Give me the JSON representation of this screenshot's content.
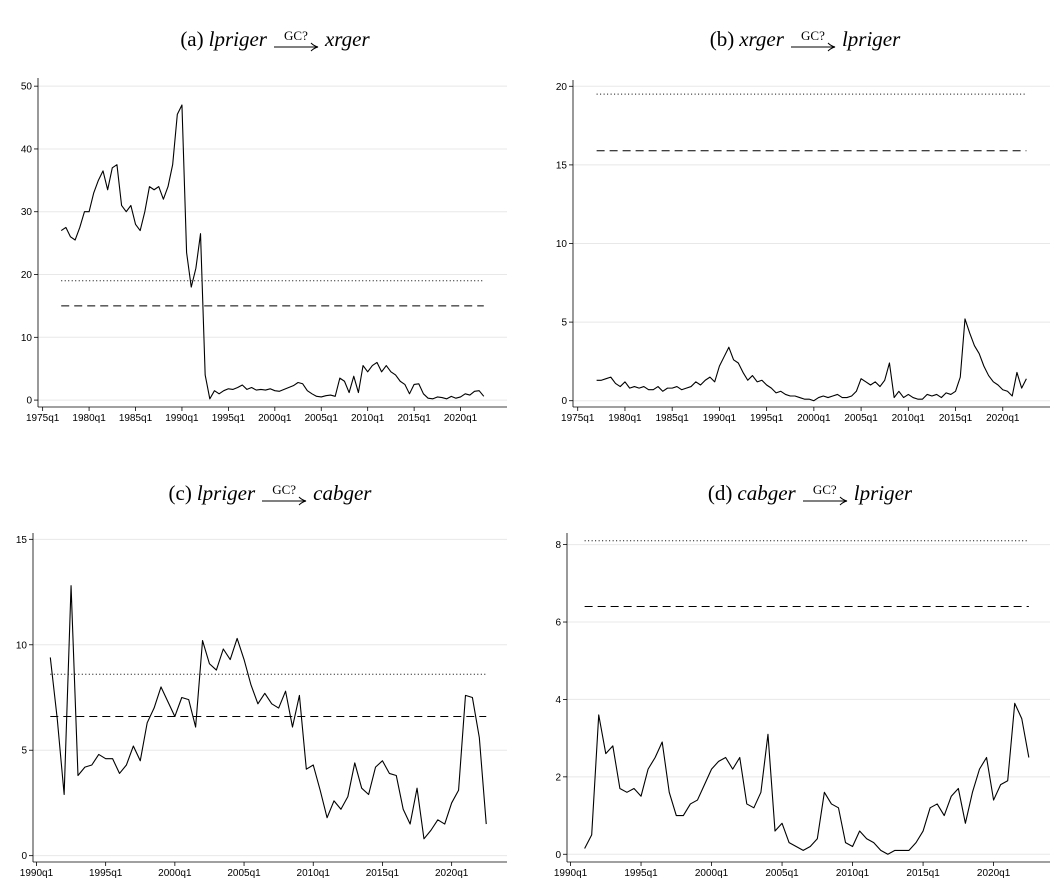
{
  "chart_data": [
    {
      "type": "line",
      "title": {
        "prefix": "(a)",
        "from": "lpriger",
        "arrow_label": "GC?",
        "to": "xrger"
      },
      "x": [
        "1977q1",
        "1977q3",
        "1978q1",
        "1978q3",
        "1979q1",
        "1979q3",
        "1980q1",
        "1980q3",
        "1981q1",
        "1981q3",
        "1982q1",
        "1982q3",
        "1983q1",
        "1983q3",
        "1984q1",
        "1984q3",
        "1985q1",
        "1985q3",
        "1986q1",
        "1986q3",
        "1987q1",
        "1987q3",
        "1988q1",
        "1988q3",
        "1989q1",
        "1989q3",
        "1990q1",
        "1990q3",
        "1991q1",
        "1991q3",
        "1992q1",
        "1992q3",
        "1993q1",
        "1993q3",
        "1994q1",
        "1994q3",
        "1995q1",
        "1995q3",
        "1996q1",
        "1996q3",
        "1997q1",
        "1997q3",
        "1998q1",
        "1998q3",
        "1999q1",
        "1999q3",
        "2000q1",
        "2000q3",
        "2001q1",
        "2001q3",
        "2002q1",
        "2002q3",
        "2003q1",
        "2003q3",
        "2004q1",
        "2004q3",
        "2005q1",
        "2005q3",
        "2006q1",
        "2006q3",
        "2007q1",
        "2007q3",
        "2008q1",
        "2008q3",
        "2009q1",
        "2009q3",
        "2010q1",
        "2010q3",
        "2011q1",
        "2011q3",
        "2012q1",
        "2012q3",
        "2013q1",
        "2013q3",
        "2014q1",
        "2014q3",
        "2015q1",
        "2015q3",
        "2016q1",
        "2016q3",
        "2017q1",
        "2017q3",
        "2018q1",
        "2018q3",
        "2019q1",
        "2019q3",
        "2020q1",
        "2020q3",
        "2021q1",
        "2021q3",
        "2022q1",
        "2022q3"
      ],
      "series": [
        {
          "color": "#000000",
          "values": [
            27,
            27.5,
            26,
            25.5,
            27.5,
            30,
            30,
            33,
            35,
            36.5,
            33.5,
            37,
            37.5,
            31,
            30,
            31,
            28,
            27,
            30,
            34,
            33.5,
            34,
            32,
            34,
            37.5,
            45.5,
            47,
            23.5,
            18,
            21,
            26.5,
            4,
            0.2,
            1.5,
            1,
            1.5,
            1.8,
            1.7,
            2,
            2.4,
            1.7,
            2,
            1.6,
            1.7,
            1.6,
            1.8,
            1.5,
            1.4,
            1.7,
            2,
            2.3,
            2.8,
            2.6,
            1.5,
            1,
            0.6,
            0.5,
            0.7,
            0.8,
            0.6,
            3.5,
            3,
            1.2,
            3.8,
            1.2,
            5.5,
            4.5,
            5.5,
            6,
            4.5,
            5.5,
            4.5,
            4,
            3,
            2.5,
            1,
            2.5,
            2.6,
            1,
            0.3,
            0.2,
            0.5,
            0.4,
            0.2,
            0.6,
            0.3,
            0.5,
            1,
            0.8,
            1.4,
            1.5,
            0.6
          ]
        }
      ],
      "hlines": [
        {
          "value": 19,
          "style": "dotted"
        },
        {
          "value": 15,
          "style": "dashed"
        }
      ],
      "xlim": [
        "1974q3",
        "2025q1"
      ],
      "xticks": [
        "1975q1",
        "1980q1",
        "1985q1",
        "1990q1",
        "1995q1",
        "2000q1",
        "2005q1",
        "2010q1",
        "2015q1",
        "2020q1"
      ],
      "ylim": [
        -1.1,
        51.3
      ],
      "yticks": [
        0,
        10,
        20,
        30,
        40,
        50
      ],
      "grid": true
    },
    {
      "type": "line",
      "title": {
        "prefix": "(b)",
        "from": "xrger",
        "arrow_label": "GC?",
        "to": "lpriger"
      },
      "x": [
        "1977q1",
        "1977q3",
        "1978q1",
        "1978q3",
        "1979q1",
        "1979q3",
        "1980q1",
        "1980q3",
        "1981q1",
        "1981q3",
        "1982q1",
        "1982q3",
        "1983q1",
        "1983q3",
        "1984q1",
        "1984q3",
        "1985q1",
        "1985q3",
        "1986q1",
        "1986q3",
        "1987q1",
        "1987q3",
        "1988q1",
        "1988q3",
        "1989q1",
        "1989q3",
        "1990q1",
        "1990q3",
        "1991q1",
        "1991q3",
        "1992q1",
        "1992q3",
        "1993q1",
        "1993q3",
        "1994q1",
        "1994q3",
        "1995q1",
        "1995q3",
        "1996q1",
        "1996q3",
        "1997q1",
        "1997q3",
        "1998q1",
        "1998q3",
        "1999q1",
        "1999q3",
        "2000q1",
        "2000q3",
        "2001q1",
        "2001q3",
        "2002q1",
        "2002q3",
        "2003q1",
        "2003q3",
        "2004q1",
        "2004q3",
        "2005q1",
        "2005q3",
        "2006q1",
        "2006q3",
        "2007q1",
        "2007q3",
        "2008q1",
        "2008q3",
        "2009q1",
        "2009q3",
        "2010q1",
        "2010q3",
        "2011q1",
        "2011q3",
        "2012q1",
        "2012q3",
        "2013q1",
        "2013q3",
        "2014q1",
        "2014q3",
        "2015q1",
        "2015q3",
        "2016q1",
        "2016q3",
        "2017q1",
        "2017q3",
        "2018q1",
        "2018q3",
        "2019q1",
        "2019q3",
        "2020q1",
        "2020q3",
        "2021q1",
        "2021q3",
        "2022q1",
        "2022q3"
      ],
      "series": [
        {
          "color": "#000000",
          "values": [
            1.3,
            1.3,
            1.4,
            1.5,
            1.1,
            0.9,
            1.2,
            0.8,
            0.9,
            0.8,
            0.9,
            0.7,
            0.7,
            0.9,
            0.6,
            0.8,
            0.8,
            0.9,
            0.7,
            0.8,
            0.9,
            1.2,
            1,
            1.3,
            1.5,
            1.2,
            2.2,
            2.8,
            3.4,
            2.6,
            2.4,
            1.8,
            1.3,
            1.6,
            1.2,
            1.3,
            1,
            0.8,
            0.5,
            0.6,
            0.4,
            0.3,
            0.3,
            0.2,
            0.1,
            0.1,
            0,
            0.2,
            0.3,
            0.2,
            0.3,
            0.4,
            0.2,
            0.2,
            0.3,
            0.6,
            1.4,
            1.2,
            1,
            1.2,
            0.9,
            1.3,
            2.4,
            0.2,
            0.6,
            0.2,
            0.4,
            0.2,
            0.1,
            0.1,
            0.4,
            0.3,
            0.4,
            0.2,
            0.5,
            0.4,
            0.6,
            1.5,
            5.2,
            4.3,
            3.5,
            3,
            2.2,
            1.6,
            1.2,
            1,
            0.7,
            0.6,
            0.3,
            1.8,
            0.8,
            1.4
          ]
        }
      ],
      "hlines": [
        {
          "value": 19.5,
          "style": "dotted"
        },
        {
          "value": 15.9,
          "style": "dashed"
        }
      ],
      "xlim": [
        "1974q3",
        "2025q1"
      ],
      "xticks": [
        "1975q1",
        "1980q1",
        "1985q1",
        "1990q1",
        "1995q1",
        "2000q1",
        "2005q1",
        "2010q1",
        "2015q1",
        "2020q1"
      ],
      "ylim": [
        -0.4,
        20.4
      ],
      "yticks": [
        0,
        5,
        10,
        15,
        20
      ],
      "grid": true
    },
    {
      "type": "line",
      "title": {
        "prefix": "(c)",
        "from": "lpriger",
        "arrow_label": "GC?",
        "to": "cabger"
      },
      "x": [
        "1991q1",
        "1991q3",
        "1992q1",
        "1992q3",
        "1993q1",
        "1993q3",
        "1994q1",
        "1994q3",
        "1995q1",
        "1995q3",
        "1996q1",
        "1996q3",
        "1997q1",
        "1997q3",
        "1998q1",
        "1998q3",
        "1999q1",
        "1999q3",
        "2000q1",
        "2000q3",
        "2001q1",
        "2001q3",
        "2002q1",
        "2002q3",
        "2003q1",
        "2003q3",
        "2004q1",
        "2004q3",
        "2005q1",
        "2005q3",
        "2006q1",
        "2006q3",
        "2007q1",
        "2007q3",
        "2008q1",
        "2008q3",
        "2009q1",
        "2009q3",
        "2010q1",
        "2010q3",
        "2011q1",
        "2011q3",
        "2012q1",
        "2012q3",
        "2013q1",
        "2013q3",
        "2014q1",
        "2014q3",
        "2015q1",
        "2015q3",
        "2016q1",
        "2016q3",
        "2017q1",
        "2017q3",
        "2018q1",
        "2018q3",
        "2019q1",
        "2019q3",
        "2020q1",
        "2020q3",
        "2021q1",
        "2021q3",
        "2022q1",
        "2022q3"
      ],
      "series": [
        {
          "color": "#000000",
          "values": [
            9.4,
            6.5,
            2.9,
            12.8,
            3.8,
            4.2,
            4.3,
            4.8,
            4.6,
            4.6,
            3.9,
            4.3,
            5.2,
            4.5,
            6.3,
            7,
            8,
            7.3,
            6.6,
            7.5,
            7.4,
            6.1,
            10.2,
            9.1,
            8.8,
            9.8,
            9.3,
            10.3,
            9.3,
            8.1,
            7.2,
            7.7,
            7.2,
            7,
            7.8,
            6.1,
            7.6,
            4.1,
            4.3,
            3.1,
            1.8,
            2.6,
            2.2,
            2.8,
            4.4,
            3.2,
            2.9,
            4.2,
            4.5,
            3.9,
            3.8,
            2.2,
            1.5,
            3.2,
            0.8,
            1.2,
            1.7,
            1.5,
            2.5,
            3.1,
            7.6,
            7.5,
            5.6,
            1.5
          ]
        }
      ],
      "hlines": [
        {
          "value": 8.6,
          "style": "dotted"
        },
        {
          "value": 6.6,
          "style": "dashed"
        }
      ],
      "xlim": [
        "1989q4",
        "2024q1"
      ],
      "xticks": [
        "1990q1",
        "1995q1",
        "2000q1",
        "2005q1",
        "2010q1",
        "2015q1",
        "2020q1"
      ],
      "ylim": [
        -0.3,
        15.3
      ],
      "yticks": [
        0,
        5,
        10,
        15
      ],
      "grid": true
    },
    {
      "type": "line",
      "title": {
        "prefix": "(d)",
        "from": "cabger",
        "arrow_label": "GC?",
        "to": "lpriger"
      },
      "x": [
        "1991q1",
        "1991q3",
        "1992q1",
        "1992q3",
        "1993q1",
        "1993q3",
        "1994q1",
        "1994q3",
        "1995q1",
        "1995q3",
        "1996q1",
        "1996q3",
        "1997q1",
        "1997q3",
        "1998q1",
        "1998q3",
        "1999q1",
        "1999q3",
        "2000q1",
        "2000q3",
        "2001q1",
        "2001q3",
        "2002q1",
        "2002q3",
        "2003q1",
        "2003q3",
        "2004q1",
        "2004q3",
        "2005q1",
        "2005q3",
        "2006q1",
        "2006q3",
        "2007q1",
        "2007q3",
        "2008q1",
        "2008q3",
        "2009q1",
        "2009q3",
        "2010q1",
        "2010q3",
        "2011q1",
        "2011q3",
        "2012q1",
        "2012q3",
        "2013q1",
        "2013q3",
        "2014q1",
        "2014q3",
        "2015q1",
        "2015q3",
        "2016q1",
        "2016q3",
        "2017q1",
        "2017q3",
        "2018q1",
        "2018q3",
        "2019q1",
        "2019q3",
        "2020q1",
        "2020q3",
        "2021q1",
        "2021q3",
        "2022q1",
        "2022q3"
      ],
      "series": [
        {
          "color": "#000000",
          "values": [
            0.15,
            0.5,
            3.6,
            2.6,
            2.8,
            1.7,
            1.6,
            1.7,
            1.5,
            2.2,
            2.5,
            2.9,
            1.6,
            1,
            1,
            1.3,
            1.4,
            1.8,
            2.2,
            2.4,
            2.5,
            2.2,
            2.5,
            1.3,
            1.2,
            1.6,
            3.1,
            0.6,
            0.8,
            0.3,
            0.2,
            0.1,
            0.2,
            0.4,
            1.6,
            1.3,
            1.2,
            0.3,
            0.2,
            0.6,
            0.4,
            0.3,
            0.1,
            0,
            0.1,
            0.1,
            0.1,
            0.3,
            0.6,
            1.2,
            1.3,
            1,
            1.5,
            1.7,
            0.8,
            1.6,
            2.2,
            2.5,
            1.4,
            1.8,
            1.9,
            3.9,
            3.5,
            2.5
          ]
        }
      ],
      "hlines": [
        {
          "value": 8.1,
          "style": "dotted"
        },
        {
          "value": 6.4,
          "style": "dashed"
        }
      ],
      "xlim": [
        "1989q4",
        "2024q1"
      ],
      "xticks": [
        "1990q1",
        "1995q1",
        "2000q1",
        "2005q1",
        "2010q1",
        "2015q1",
        "2020q1"
      ],
      "ylim": [
        -0.2,
        8.3
      ],
      "yticks": [
        0,
        2,
        4,
        6,
        8
      ],
      "grid": true
    }
  ]
}
